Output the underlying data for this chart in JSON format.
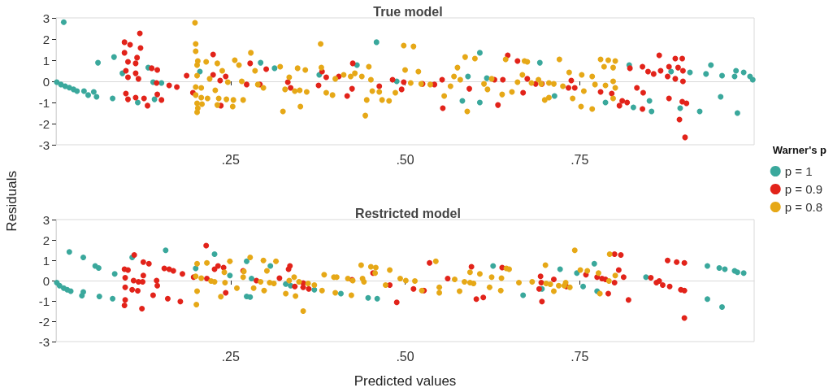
{
  "chart_data": [
    {
      "type": "scatter",
      "title": "True model",
      "ylabel": "Residuals",
      "legend_title": "Warner's p",
      "legend": "right",
      "marker": "circle",
      "xlim": [
        0,
        1
      ],
      "xticks": [
        {
          "value": 0.25,
          "label": ".25"
        },
        {
          "value": 0.5,
          "label": ".50"
        },
        {
          "value": 0.75,
          "label": ".75"
        }
      ],
      "ylim": [
        -3,
        3
      ],
      "yticks": [
        -3,
        -2,
        -1,
        0,
        1,
        2,
        3
      ],
      "series": [
        {
          "name": "p = 1",
          "color": "#3aa89c",
          "x": [
            0.001,
            0.007,
            0.013,
            0.019,
            0.025,
            0.03,
            0.011,
            0.04,
            0.046,
            0.054,
            0.058,
            0.06,
            0.083,
            0.081,
            0.095,
            0.117,
            0.132,
            0.139,
            0.141,
            0.151,
            0.206,
            0.293,
            0.313,
            0.377,
            0.431,
            0.459,
            0.488,
            0.607,
            0.59,
            0.582,
            0.607,
            0.617,
            0.693,
            0.714,
            0.725,
            0.787,
            0.821,
            0.85,
            0.827,
            0.853,
            0.881,
            0.908,
            0.894,
            0.922,
            0.931,
            0.938,
            0.952,
            0.954,
            0.972,
            0.976,
            0.974,
            0.985,
            0.994,
            0.998
          ],
          "values": [
            -0.04,
            -0.15,
            -0.23,
            -0.3,
            -0.38,
            -0.46,
            2.8,
            -0.46,
            -0.65,
            -0.5,
            -0.73,
            0.88,
            1.15,
            -0.81,
            0.38,
            -1.0,
            0.65,
            -0.04,
            -0.85,
            -0.08,
            0.46,
            0.88,
            0.62,
            0.31,
            0.77,
            1.85,
            0,
            1.35,
            0.23,
            -0.92,
            -1.0,
            0.15,
            0.88,
            -0.69,
            null,
            -1.0,
            0.77,
            -0.92,
            -1.23,
            -1.42,
            0.46,
            0.42,
            -1.27,
            -1.42,
            0.35,
            0.77,
            -0.73,
            0.27,
            0.23,
            -1.5,
            0.5,
            0.42,
            0.23,
            0.08
          ]
        },
        {
          "name": "p = 0.9",
          "color": "#e2231a",
          "x": [
            0.098,
            0.106,
            0.12,
            0.121,
            0.098,
            0.103,
            0.114,
            0.116,
            0.1,
            0.114,
            0.103,
            0.118,
            0.1,
            0.103,
            0.114,
            0.126,
            0.131,
            0.137,
            0.145,
            0.145,
            0.151,
            0.144,
            0.162,
            0.173,
            0.187,
            0.196,
            0.225,
            0.225,
            0.235,
            0.243,
            0.236,
            0.278,
            0.301,
            0.273,
            0.292,
            0.332,
            0.336,
            0.376,
            0.381,
            0.387,
            0.405,
            0.417,
            0.424,
            0.425,
            0.463,
            0.482,
            0.495,
            0.498,
            0.525,
            0.542,
            0.553,
            0.554,
            0.592,
            0.628,
            0.64,
            0.633,
            0.647,
            0.661,
            0.669,
            0.675,
            0.687,
            0.696,
            0.734,
            0.738,
            0.743,
            0.78,
            0.796,
            0.811,
            0.807,
            0.818,
            0.822,
            0.832,
            0.84,
            0.841,
            0.84,
            0.848,
            0.856,
            0.864,
            0.866,
            0.878,
            0.876,
            0.878,
            0.887,
            0.897,
            0.891,
            0.898,
            0.887,
            0.898,
            0.897,
            0.903,
            0.893,
            0.901
          ],
          "values": [
            1.85,
            1.73,
            2.27,
            1.58,
            1.35,
            0.92,
            0.85,
            1.12,
            0.5,
            0.38,
            0.19,
            0.12,
            -0.58,
            -0.85,
            -0.77,
            -0.81,
            -1.15,
            0.62,
            0.54,
            -0.62,
            -0.88,
            -0.08,
            -0.19,
            -0.27,
            0.27,
            -0.54,
            1.27,
            0.31,
            0.04,
            0.23,
            -1.15,
            0.85,
            0.58,
            -0.15,
            -0.15,
            -0.04,
            -0.31,
            -0.19,
            0.46,
            0.19,
            0.23,
            -0.69,
            -0.35,
            0.85,
            -0.23,
            0.08,
            -0.38,
            -0.04,
            -0.12,
            -0.15,
            0.08,
            -1.27,
            -0.35,
            0.08,
            0.08,
            -1.12,
            1.23,
            0.96,
            -0.54,
            0.12,
            -0.12,
            -0.12,
            -0.31,
            0.04,
            -0.31,
            -0.5,
            -0.58,
            -0.92,
            -1.15,
            -1.0,
            0.62,
            -0.31,
            0.69,
            -0.54,
            -1.31,
            0.46,
            0.35,
            1.23,
            0.5,
            0.69,
            0.23,
            -0.81,
            1.08,
            1.08,
            0.65,
            0.5,
            0.12,
            0,
            -0.96,
            -1.04,
            -1.81,
            -2.65
          ]
        },
        {
          "name": "p = 0.8",
          "color": "#e6a817",
          "x": [
            0.199,
            0.2,
            0.2,
            0.202,
            0.203,
            0.215,
            0.231,
            0.202,
            0.2,
            0.208,
            0.2,
            0.208,
            0.217,
            0.202,
            0.209,
            0.203,
            0.202,
            0.22,
            0.228,
            0.233,
            0.231,
            0.238,
            0.244,
            0.246,
            0.254,
            0.253,
            0.256,
            0.262,
            0.268,
            0.266,
            0.279,
            0.285,
            0.297,
            0.289,
            0.321,
            0.325,
            0.334,
            0.328,
            0.342,
            0.346,
            0.349,
            0.359,
            0.35,
            0.357,
            0.379,
            0.38,
            0.387,
            0.396,
            0.4,
            0.412,
            0.422,
            0.428,
            0.438,
            0.443,
            0.445,
            0.448,
            0.451,
            0.453,
            0.463,
            0.467,
            0.477,
            0.486,
            0.498,
            0.5,
            0.512,
            0.508,
            0.519,
            0.523,
            0.536,
            0.556,
            0.565,
            0.57,
            0.575,
            0.579,
            0.586,
            0.589,
            0.6,
            0.613,
            0.618,
            0.624,
            0.639,
            0.644,
            0.653,
            0.661,
            0.668,
            0.671,
            0.675,
            0.681,
            0.691,
            0.695,
            0.7,
            0.706,
            0.706,
            0.713,
            0.721,
            0.726,
            0.735,
            0.74,
            0.752,
            0.753,
            0.756,
            0.768,
            0.768,
            0.772,
            0.78,
            0.791,
            0.801,
            0.785,
            0.798,
            0.787,
            0.798,
            0.801,
            0.798
          ],
          "values": [
            2.77,
            1.77,
            1.42,
            0.77,
            0.96,
            0.92,
            0.85,
            0.27,
            -0.27,
            -0.31,
            -0.65,
            -0.77,
            -0.81,
            -1.04,
            -1.08,
            -1.27,
            -1.46,
            0.12,
            -0.42,
            -0.81,
            -1.12,
            0.5,
            -0.85,
            -0.04,
            -0.88,
            -1.19,
            1.0,
            0.77,
            -0.88,
            0,
            1.35,
            0.5,
            -0.31,
            -0.15,
            0.69,
            -1.42,
            0.19,
            -0.38,
            -0.46,
            0.62,
            -0.42,
            -0.5,
            -1.19,
            0.54,
            1.77,
            0.65,
            -0.54,
            -0.65,
            0.12,
            0.31,
            0.23,
            0.38,
            0.23,
            -1.62,
            -0.88,
            0.69,
            0.08,
            -0.46,
            -0.5,
            -0.88,
            -0.92,
            -0.54,
            1.69,
            0.54,
            1.65,
            -0.08,
            0.46,
            -0.12,
            -0.15,
            -0.69,
            -0.23,
            0.23,
            0.65,
            0.08,
            1.15,
            -1.42,
            1.08,
            -0.12,
            -0.38,
            0.12,
            -0.62,
            1.04,
            -0.5,
            -0.04,
            0.31,
            0.96,
            0.92,
            -0.08,
            0.08,
            -0.12,
            -0.88,
            -0.77,
            -0.08,
            -0.12,
            1.04,
            -0.23,
            0.42,
            -0.81,
            -1.19,
            0.31,
            -0.46,
            0.23,
            -1.31,
            -0.15,
            1.04,
            1.0,
            0.96,
            0.69,
            0.65,
            -0.19,
            0,
            -0.31,
            -0.81
          ]
        }
      ]
    },
    {
      "type": "scatter",
      "title": "Restricted model",
      "xlabel": "Predicted values",
      "marker": "circle",
      "xlim": [
        0,
        1
      ],
      "xticks": [
        {
          "value": 0.25,
          "label": ".25"
        },
        {
          "value": 0.5,
          "label": ".50"
        },
        {
          "value": 0.75,
          "label": ".75"
        }
      ],
      "ylim": [
        -3,
        3
      ],
      "yticks": [
        -3,
        -2,
        -1,
        0,
        1,
        2,
        3
      ],
      "series": [
        {
          "color": "#3aa89c",
          "x": [
            0.001,
            0.005,
            0.011,
            0.016,
            0.021,
            0.019,
            0.039,
            0.039,
            0.037,
            0.056,
            0.061,
            0.062,
            0.081,
            0.084,
            0.109,
            0.157,
            0.2,
            0.227,
            0.249,
            0.273,
            0.273,
            0.278,
            0.28,
            0.307,
            0.329,
            0.336,
            0.37,
            0.408,
            0.447,
            0.46,
            0.626,
            0.669,
            0.696,
            0.722,
            0.746,
            0.755,
            0.771,
            0.775,
            0.798,
            0.845,
            0.933,
            0.933,
            0.95,
            0.954,
            0.958,
            0.972,
            0.976,
            0.985
          ],
          "values": [
            -0.1,
            -0.25,
            -0.37,
            -0.45,
            -0.52,
            1.41,
            1.14,
            -0.56,
            -0.74,
            0.72,
            0.62,
            -0.78,
            -0.89,
            0.33,
            1.14,
            1.49,
            0.6,
            1.3,
            0.25,
            0.95,
            -0.78,
            -0.81,
            0.1,
            0.72,
            -0.17,
            -0.25,
            -0.45,
            -0.64,
            -0.85,
            -0.89,
            0.72,
            -0.72,
            -0.41,
            0.56,
            0.37,
            -0.29,
            0.83,
            -0.52,
            null,
            0.17,
            0.72,
            -0.91,
            0.62,
            -1.3,
            0.56,
            0.48,
            0.41,
            0.37
          ]
        },
        {
          "color": "#e2231a",
          "x": [
            0.112,
            0.098,
            0.103,
            0.099,
            0.099,
            0.109,
            0.117,
            0.099,
            0.098,
            0.123,
            0.111,
            0.118,
            0.124,
            0.125,
            0.125,
            0.133,
            0.139,
            0.144,
            0.145,
            0.155,
            0.162,
            0.168,
            0.16,
            0.181,
            0.178,
            0.197,
            0.215,
            0.216,
            0.227,
            0.232,
            0.24,
            0.243,
            0.268,
            0.287,
            0.32,
            0.335,
            0.333,
            0.342,
            0.354,
            0.354,
            0.362,
            0.424,
            0.454,
            0.478,
            0.488,
            0.535,
            0.512,
            0.527,
            0.561,
            0.595,
            0.602,
            0.612,
            0.639,
            0.692,
            0.694,
            0.695,
            0.696,
            0.713,
            0.731,
            0.759,
            0.775,
            0.782,
            0.787,
            0.791,
            0.8,
            0.809,
            0.806,
            0.813,
            0.8,
            0.82,
            0.852,
            0.86,
            0.864,
            0.869,
            0.876,
            0.889,
            0.9,
            0.879,
            0.895,
            0.9,
            0.9
          ],
          "values": [
            1.26,
            0.56,
            0.52,
            0.14,
            -0.33,
            -0.45,
            -0.5,
            -0.95,
            -1.22,
            -1.38,
            0,
            -0.06,
            -0.06,
            0.25,
            0.91,
            0.83,
            -0.72,
            0,
            -0.25,
            0.6,
            0.56,
            0.48,
            -0.89,
            0.33,
            -1.03,
            0.17,
            1.72,
            0.1,
            0.56,
            0.72,
            0.64,
            -0.6,
            0.48,
            0,
            0.12,
            0.72,
            0.56,
            -0.29,
            -0.12,
            -0.33,
            -0.41,
            0.04,
            0.37,
            -0.22,
            -1.07,
            0.87,
            -0.41,
            -0.49,
            0.1,
            0.68,
            -0.91,
            -0.83,
            0.64,
            -0.41,
            0.21,
            -0.1,
            -1.03,
            0.06,
            -0.29,
            0.29,
            0.17,
            0.1,
            0.06,
            -0.64,
            1.3,
            1.26,
            0.52,
            0.17,
            -0.1,
            -0.95,
            0.14,
            -0.1,
            -0.02,
            -0.22,
            0.99,
            0.91,
            0.87,
            -0.29,
            -0.45,
            -0.49,
            -1.84
          ]
        },
        {
          "color": "#e6a817",
          "x": [
            0.202,
            0.202,
            0.201,
            0.2,
            0.208,
            0.216,
            0.222,
            0.227,
            0.236,
            0.241,
            0.242,
            0.249,
            0.259,
            0.268,
            0.269,
            0.278,
            0.283,
            0.293,
            0.297,
            0.298,
            0.302,
            0.306,
            0.312,
            0.315,
            0.329,
            0.334,
            0.341,
            0.343,
            0.348,
            0.354,
            0.361,
            0.37,
            0.381,
            0.384,
            0.398,
            0.4,
            0.402,
            0.418,
            0.423,
            0.425,
            0.437,
            0.439,
            0.441,
            0.451,
            0.458,
            0.457,
            0.472,
            0.478,
            0.493,
            0.501,
            0.514,
            0.524,
            0.544,
            0.549,
            0.549,
            0.571,
            0.578,
            0.585,
            0.593,
            0.598,
            0.593,
            0.607,
            0.621,
            0.624,
            0.637,
            0.638,
            0.645,
            0.649,
            0.663,
            0.682,
            0.701,
            0.702,
            0.708,
            0.713,
            0.72,
            0.728,
            0.73,
            0.736,
            0.743,
            0.751,
            0.761,
            0.777,
            0.779,
            0.793,
            0.801,
            0.792
          ],
          "values": [
            0.83,
            -0.52,
            -1.18,
            0.21,
            0.12,
            0.87,
            -0.02,
            -0.06,
            -0.79,
            0.41,
            -0.1,
            0.95,
            -0.37,
            0.17,
            0.45,
            1.14,
            -0.37,
            -0.06,
            0.99,
            -0.49,
            0.48,
            -0.1,
            -0.14,
            0.95,
            -0.64,
            0,
            0.17,
            -0.76,
            -0.06,
            -1.5,
            -0.14,
            -0.22,
            -0.49,
            0.29,
            0.17,
            -0.6,
            0.17,
            0.1,
            -0.72,
            0,
            0.76,
            0.1,
            -0.06,
            0.68,
            0.64,
            0.37,
            -0.22,
            0.52,
            0.1,
            0,
            -0.02,
            -0.49,
            0.95,
            -0.33,
            -0.6,
            0.06,
            -0.52,
            -0.06,
            -0.1,
            -0.14,
            0.41,
            0.33,
            -0.33,
            0.17,
            -0.49,
            0.12,
            0.6,
            0.56,
            -0.1,
            -0.06,
            0.76,
            -0.14,
            -0.18,
            -0.52,
            -0.25,
            -0.25,
            -0.1,
            -0.33,
            1.49,
            0.52,
            0.48,
            0.37,
            -0.64,
            1.3,
            0.25,
            -0.02
          ]
        }
      ]
    }
  ]
}
